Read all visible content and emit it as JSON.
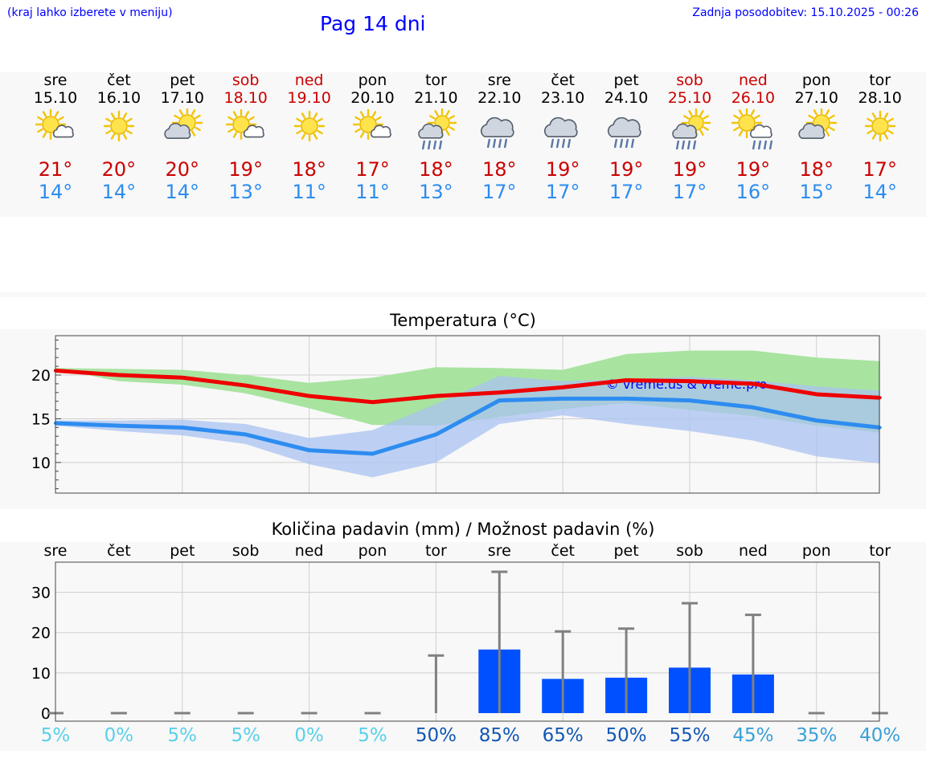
{
  "header": {
    "hint": "(kraj lahko izberete v meniju)",
    "title": "Pag 14 dni",
    "updated": "Zadnja posodobitev: 15.10.2025 - 00:26"
  },
  "colors": {
    "max": "#ee0000",
    "min": "#2d8cf0",
    "max_band": "#a8e4a0",
    "min_band": "#a9c3f2",
    "overlap_band": "#7fc2a8",
    "bar": "#0050ff",
    "err": "#808080",
    "weekend": "#cc0000"
  },
  "days": [
    {
      "name": "sre",
      "date": "15.10",
      "weekend": false,
      "icon": "sun-cloud-icon",
      "tmax": "21°",
      "tmin": "14°"
    },
    {
      "name": "čet",
      "date": "16.10",
      "weekend": false,
      "icon": "sun-icon",
      "tmax": "20°",
      "tmin": "14°"
    },
    {
      "name": "pet",
      "date": "17.10",
      "weekend": false,
      "icon": "cloud-sun-icon",
      "tmax": "20°",
      "tmin": "14°"
    },
    {
      "name": "sob",
      "date": "18.10",
      "weekend": true,
      "icon": "sun-cloud-icon",
      "tmax": "19°",
      "tmin": "13°"
    },
    {
      "name": "ned",
      "date": "19.10",
      "weekend": true,
      "icon": "sun-icon",
      "tmax": "18°",
      "tmin": "11°"
    },
    {
      "name": "pon",
      "date": "20.10",
      "weekend": false,
      "icon": "sun-cloud-icon",
      "tmax": "17°",
      "tmin": "11°"
    },
    {
      "name": "tor",
      "date": "21.10",
      "weekend": false,
      "icon": "sun-rain-icon",
      "tmax": "18°",
      "tmin": "13°"
    },
    {
      "name": "sre",
      "date": "22.10",
      "weekend": false,
      "icon": "cloud-rain-icon",
      "tmax": "18°",
      "tmin": "17°"
    },
    {
      "name": "čet",
      "date": "23.10",
      "weekend": false,
      "icon": "cloud-rain-icon",
      "tmax": "19°",
      "tmin": "17°"
    },
    {
      "name": "pet",
      "date": "24.10",
      "weekend": false,
      "icon": "cloud-rain-icon",
      "tmax": "19°",
      "tmin": "17°"
    },
    {
      "name": "sob",
      "date": "25.10",
      "weekend": true,
      "icon": "sun-rain-icon",
      "tmax": "19°",
      "tmin": "17°"
    },
    {
      "name": "ned",
      "date": "26.10",
      "weekend": true,
      "icon": "sun-cloud-rain-icon",
      "tmax": "19°",
      "tmin": "16°"
    },
    {
      "name": "pon",
      "date": "27.10",
      "weekend": false,
      "icon": "cloud-sun-icon",
      "tmax": "18°",
      "tmin": "15°"
    },
    {
      "name": "tor",
      "date": "28.10",
      "weekend": false,
      "icon": "sun-icon",
      "tmax": "17°",
      "tmin": "14°"
    }
  ],
  "chart_data": [
    {
      "type": "line",
      "title": "Temperatura (°C)",
      "x": [
        "15.10",
        "16.10",
        "17.10",
        "18.10",
        "19.10",
        "20.10",
        "21.10",
        "22.10",
        "23.10",
        "24.10",
        "25.10",
        "26.10",
        "27.10",
        "28.10"
      ],
      "ylim": [
        6.5,
        24.5
      ],
      "yticks": [
        "10",
        "15",
        "20"
      ],
      "grid": true,
      "series": [
        {
          "values": [
            20.5,
            20.0,
            19.7,
            18.8,
            17.6,
            16.9,
            17.6,
            18.0,
            18.6,
            19.4,
            19.3,
            19.0,
            17.8,
            17.4
          ],
          "band_low": [
            20.7,
            19.3,
            18.9,
            17.9,
            16.2,
            14.3,
            14.2,
            15.2,
            16.1,
            16.8,
            16.0,
            15.3,
            14.2,
            13.4
          ],
          "band_high": [
            20.8,
            20.7,
            20.6,
            20.0,
            19.1,
            19.7,
            20.9,
            20.8,
            20.6,
            22.4,
            22.8,
            22.8,
            22.0,
            21.6
          ]
        },
        {
          "values": [
            14.5,
            14.2,
            14.0,
            13.2,
            11.4,
            11.0,
            13.2,
            17.1,
            17.3,
            17.3,
            17.1,
            16.3,
            14.8,
            14.0
          ],
          "band_low": [
            14.2,
            13.6,
            13.1,
            12.1,
            9.8,
            8.3,
            10.0,
            14.4,
            15.4,
            14.4,
            13.6,
            12.5,
            10.7,
            9.9
          ],
          "band_high": [
            14.8,
            14.8,
            14.9,
            14.4,
            12.8,
            13.7,
            16.7,
            19.9,
            19.3,
            19.5,
            19.8,
            19.4,
            18.7,
            18.2
          ]
        }
      ],
      "watermark": "© vreme.us & vreme.pro"
    },
    {
      "type": "bar",
      "title": "Količina padavin (mm) / Možnost padavin (%)",
      "categories": [
        "sre",
        "čet",
        "pet",
        "sob",
        "ned",
        "pon",
        "tor",
        "sre",
        "čet",
        "pet",
        "sob",
        "ned",
        "pon",
        "tor"
      ],
      "values": [
        0,
        0,
        0,
        0,
        0,
        0,
        0,
        15.8,
        8.5,
        8.8,
        11.3,
        9.6,
        0,
        0
      ],
      "error_high": [
        0,
        0,
        0,
        0,
        0,
        0,
        14.3,
        35.1,
        20.3,
        21.0,
        27.3,
        24.4,
        0,
        0
      ],
      "probability": [
        "5%",
        "0%",
        "5%",
        "5%",
        "0%",
        "5%",
        "50%",
        "85%",
        "65%",
        "50%",
        "55%",
        "45%",
        "35%",
        "40%"
      ],
      "probability_values": [
        5,
        0,
        5,
        5,
        0,
        5,
        50,
        85,
        65,
        50,
        55,
        45,
        35,
        40
      ],
      "ylim": [
        -2,
        37.5
      ],
      "yticks": [
        "0",
        "10",
        "20",
        "30"
      ],
      "grid": true
    }
  ]
}
